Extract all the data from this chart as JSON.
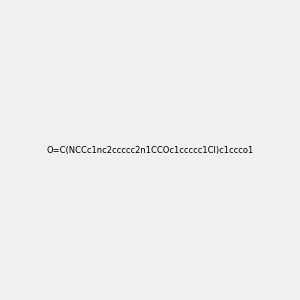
{
  "smiles": "O=C(NCCc1nc2ccccc2n1CCOc1ccccc1Cl)c1ccco1",
  "background_color": "#f0f0f0",
  "figsize": [
    3.0,
    3.0
  ],
  "dpi": 100,
  "title": ""
}
